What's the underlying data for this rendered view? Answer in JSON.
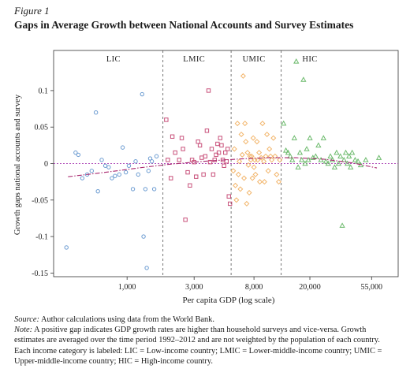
{
  "figure": {
    "label": "Figure 1",
    "title": "Gaps in Average Growth between National Accounts and Survey Estimates"
  },
  "notes": {
    "source_label": "Source:",
    "source_text": " Author calculations using data from the World Bank.",
    "note_label": "Note:",
    "note_text": " A positive gap indicates GDP growth rates are higher than household surveys and vice-versa. Growth estimates are averaged over the time period 1992–2012 and are not weighted by the population of each country. Each income category is labeled: LIC = Low-income country; LMIC = Lower-middle-income country; UMIC = Upper-middle-income country; HIC = High-income country."
  },
  "chart_data": {
    "type": "scatter",
    "xlabel": "Per capita GDP (log scale)",
    "ylabel": "Growth gaps national accounts and survey",
    "x_scale": "log",
    "xlim": [
      300,
      85000
    ],
    "ylim": [
      -0.155,
      0.155
    ],
    "x_ticks": [
      {
        "value": 1000,
        "label": "1,000"
      },
      {
        "value": 3000,
        "label": "3,000"
      },
      {
        "value": 8000,
        "label": "8,000"
      },
      {
        "value": 20000,
        "label": "20,000"
      },
      {
        "value": 55000,
        "label": "55,000"
      }
    ],
    "y_ticks": [
      {
        "value": 0.1,
        "label": "0.1"
      },
      {
        "value": 0.05,
        "label": "0.05"
      },
      {
        "value": 0,
        "label": "0"
      },
      {
        "value": -0.05,
        "label": "-0.05"
      },
      {
        "value": -0.1,
        "label": "-0.1"
      },
      {
        "value": -0.15,
        "label": "-0.15"
      }
    ],
    "grid": false,
    "zero_line": {
      "y": 0,
      "color": "#b04bb8"
    },
    "category_dividers": [
      1800,
      5500,
      12500
    ],
    "regions": [
      {
        "label": "LIC",
        "x": 800
      },
      {
        "label": "LMIC",
        "x": 3000
      },
      {
        "label": "UMIC",
        "x": 8000
      },
      {
        "label": "HIC",
        "x": 20000
      }
    ],
    "trend": {
      "color": "#a8286e",
      "points": [
        [
          380,
          -0.018
        ],
        [
          700,
          -0.012
        ],
        [
          1200,
          -0.006
        ],
        [
          2000,
          -0.001
        ],
        [
          3500,
          0.003
        ],
        [
          6000,
          0.006
        ],
        [
          10000,
          0.008
        ],
        [
          16000,
          0.008
        ],
        [
          25000,
          0.006
        ],
        [
          40000,
          0.001
        ],
        [
          60000,
          -0.006
        ]
      ]
    },
    "series": [
      {
        "name": "LIC",
        "marker": "circle",
        "color": "#6b9bd1",
        "points": [
          [
            370,
            -0.115
          ],
          [
            430,
            0.015
          ],
          [
            450,
            0.012
          ],
          [
            480,
            -0.02
          ],
          [
            520,
            -0.015
          ],
          [
            560,
            -0.01
          ],
          [
            600,
            0.07
          ],
          [
            620,
            -0.038
          ],
          [
            660,
            0.005
          ],
          [
            700,
            -0.003
          ],
          [
            740,
            -0.005
          ],
          [
            780,
            -0.02
          ],
          [
            820,
            -0.017
          ],
          [
            880,
            -0.015
          ],
          [
            930,
            0.022
          ],
          [
            980,
            -0.012
          ],
          [
            1030,
            -0.003
          ],
          [
            1100,
            -0.035
          ],
          [
            1150,
            0.003
          ],
          [
            1200,
            -0.015
          ],
          [
            1280,
            0.095
          ],
          [
            1310,
            -0.1
          ],
          [
            1350,
            -0.035
          ],
          [
            1380,
            -0.143
          ],
          [
            1420,
            -0.01
          ],
          [
            1460,
            0.007
          ],
          [
            1500,
            0.003
          ],
          [
            1560,
            -0.035
          ],
          [
            1620,
            0.01
          ]
        ]
      },
      {
        "name": "LMIC",
        "marker": "square",
        "color": "#c8507a",
        "points": [
          [
            1900,
            0.06
          ],
          [
            1950,
            0.005
          ],
          [
            2050,
            -0.02
          ],
          [
            2100,
            0.037
          ],
          [
            2200,
            0.015
          ],
          [
            2350,
            0.005
          ],
          [
            2450,
            0.035
          ],
          [
            2500,
            0.02
          ],
          [
            2600,
            -0.077
          ],
          [
            2700,
            -0.012
          ],
          [
            2800,
            -0.03
          ],
          [
            2900,
            0.005
          ],
          [
            3000,
            0.002
          ],
          [
            3100,
            -0.018
          ],
          [
            3200,
            0.03
          ],
          [
            3300,
            0.025
          ],
          [
            3400,
            0.008
          ],
          [
            3500,
            -0.015
          ],
          [
            3600,
            0.01
          ],
          [
            3700,
            0.045
          ],
          [
            3800,
            0.1
          ],
          [
            3900,
            0.002
          ],
          [
            4000,
            0.02
          ],
          [
            4100,
            -0.015
          ],
          [
            4200,
            0.005
          ],
          [
            4300,
            0.012
          ],
          [
            4400,
            0.027
          ],
          [
            4500,
            0.015
          ],
          [
            4600,
            0.035
          ],
          [
            4700,
            0.025
          ],
          [
            4800,
            0.005
          ],
          [
            4900,
            -0.003
          ],
          [
            5000,
            0.015
          ],
          [
            5100,
            0.003
          ],
          [
            5200,
            0.02
          ],
          [
            5300,
            -0.045
          ],
          [
            5400,
            -0.055
          ]
        ]
      },
      {
        "name": "UMIC",
        "marker": "diamond",
        "color": "#f2b56b",
        "points": [
          [
            5700,
            -0.01
          ],
          [
            5800,
            0.02
          ],
          [
            5900,
            -0.03
          ],
          [
            6000,
            -0.05
          ],
          [
            6100,
            0.055
          ],
          [
            6200,
            -0.015
          ],
          [
            6300,
            0.003
          ],
          [
            6400,
            -0.035
          ],
          [
            6500,
            0.04
          ],
          [
            6600,
            0.012
          ],
          [
            6700,
            0.12
          ],
          [
            6800,
            -0.02
          ],
          [
            6900,
            0.055
          ],
          [
            7000,
            0.03
          ],
          [
            7100,
            -0.055
          ],
          [
            7200,
            0.015
          ],
          [
            7300,
            -0.002
          ],
          [
            7400,
            -0.04
          ],
          [
            7500,
            0.01
          ],
          [
            7600,
            0.005
          ],
          [
            7700,
            0.01
          ],
          [
            7800,
            -0.02
          ],
          [
            7900,
            0.035
          ],
          [
            8000,
            -0.005
          ],
          [
            8100,
            0.005
          ],
          [
            8200,
            -0.015
          ],
          [
            8400,
            0.03
          ],
          [
            8500,
            0.005
          ],
          [
            8700,
            0.015
          ],
          [
            8800,
            -0.025
          ],
          [
            9000,
            0.008
          ],
          [
            9200,
            0.055
          ],
          [
            9400,
            0.003
          ],
          [
            9500,
            -0.025
          ],
          [
            9700,
            0.01
          ],
          [
            9900,
            0.04
          ],
          [
            10100,
            -0.01
          ],
          [
            10300,
            0.02
          ],
          [
            10500,
            0.01
          ],
          [
            10700,
            0.005
          ],
          [
            11000,
            0.035
          ],
          [
            11300,
            0.01
          ],
          [
            11600,
            -0.015
          ],
          [
            12000,
            -0.025
          ],
          [
            12200,
            0.005
          ]
        ]
      },
      {
        "name": "HIC",
        "marker": "triangle",
        "color": "#6cba6c",
        "points": [
          [
            13000,
            0.055
          ],
          [
            13500,
            0.018
          ],
          [
            14000,
            0.015
          ],
          [
            14500,
            0.01
          ],
          [
            15000,
            0.005
          ],
          [
            15500,
            0.035
          ],
          [
            16000,
            0.14
          ],
          [
            16500,
            -0.005
          ],
          [
            17000,
            0.015
          ],
          [
            17500,
            0.005
          ],
          [
            18000,
            0.115
          ],
          [
            18500,
            0.0
          ],
          [
            19000,
            0.02
          ],
          [
            19500,
            0.005
          ],
          [
            20000,
            0.035
          ],
          [
            21000,
            0.008
          ],
          [
            22000,
            0.01
          ],
          [
            23000,
            0.025
          ],
          [
            24000,
            0.005
          ],
          [
            25000,
            0.035
          ],
          [
            26000,
            0.003
          ],
          [
            27000,
            0.0
          ],
          [
            28000,
            0.01
          ],
          [
            29000,
            0.005
          ],
          [
            30000,
            -0.005
          ],
          [
            31000,
            0.015
          ],
          [
            32000,
            0.0
          ],
          [
            33000,
            0.01
          ],
          [
            34000,
            -0.085
          ],
          [
            35000,
            0.005
          ],
          [
            36000,
            0.015
          ],
          [
            37000,
            0.0
          ],
          [
            38000,
            0.01
          ],
          [
            39000,
            -0.005
          ],
          [
            40000,
            0.015
          ],
          [
            42000,
            0.005
          ],
          [
            44000,
            0.003
          ],
          [
            46000,
            -0.002
          ],
          [
            50000,
            0.005
          ],
          [
            62000,
            0.008
          ]
        ]
      }
    ]
  }
}
